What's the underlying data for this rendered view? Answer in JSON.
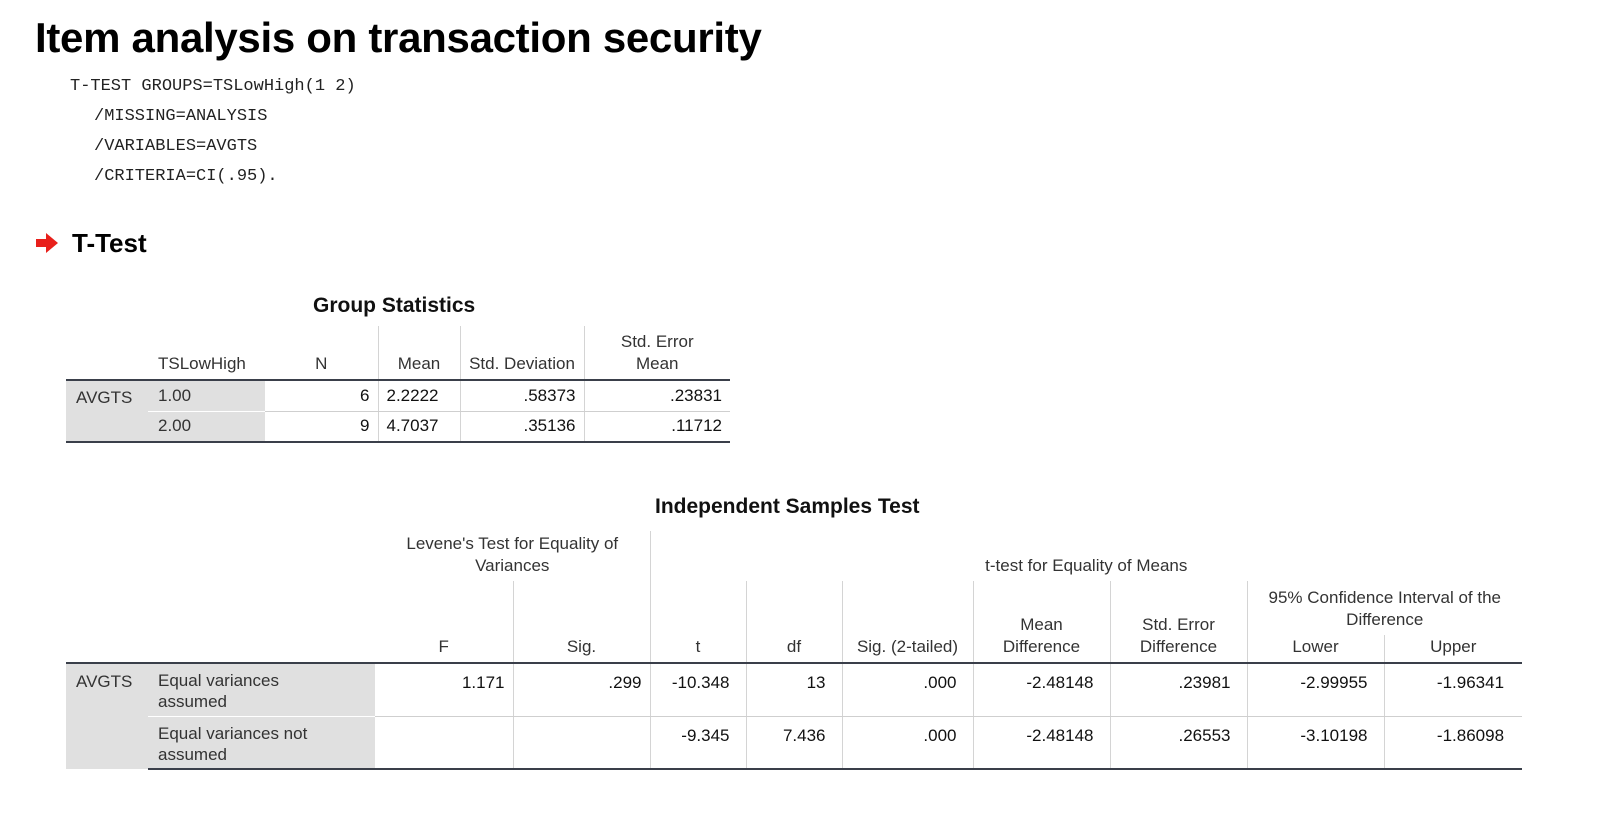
{
  "heading": "Item analysis on transaction security",
  "syntax": {
    "line1": "T-TEST GROUPS=TSLowHigh(1 2)",
    "line2": "/MISSING=ANALYSIS",
    "line3": "/VARIABLES=AVGTS",
    "line4": "/CRITERIA=CI(.95)."
  },
  "section": {
    "arrow_icon": "red-right-arrow-icon",
    "title": "T-Test",
    "accent_color": "#e8201b"
  },
  "group_stats": {
    "title": "Group Statistics",
    "headers": {
      "group": "TSLowHigh",
      "n": "N",
      "mean": "Mean",
      "sd": "Std. Deviation",
      "se_line1": "Std. Error",
      "se_line2": "Mean"
    },
    "variable": "AVGTS",
    "rows": [
      {
        "group": "1.00",
        "n": "6",
        "mean": "2.2222",
        "sd": ".58373",
        "se": ".23831"
      },
      {
        "group": "2.00",
        "n": "9",
        "mean": "4.7037",
        "sd": ".35136",
        "se": ".11712"
      }
    ]
  },
  "ind_test": {
    "title": "Independent Samples Test",
    "levene_line1": "Levene's Test for Equality of",
    "levene_line2": "Variances",
    "ttest_header": "t-test for Equality of Means",
    "ci_line1": "95% Confidence Interval of the",
    "ci_line2": "Difference",
    "headers": {
      "f": "F",
      "sig": "Sig.",
      "t": "t",
      "df": "df",
      "sig2": "Sig. (2-tailed)",
      "md_line1": "Mean",
      "md_line2": "Difference",
      "sed_line1": "Std. Error",
      "sed_line2": "Difference",
      "lower": "Lower",
      "upper": "Upper"
    },
    "variable": "AVGTS",
    "rows": [
      {
        "label_line1": "Equal variances",
        "label_line2": "assumed",
        "f": "1.171",
        "sig": ".299",
        "t": "-10.348",
        "df": "13",
        "sig2": ".000",
        "md": "-2.48148",
        "sed": ".23981",
        "lower": "-2.99955",
        "upper": "-1.96341"
      },
      {
        "label_line1": "Equal variances not",
        "label_line2": "assumed",
        "f": "",
        "sig": "",
        "t": "-9.345",
        "df": "7.436",
        "sig2": ".000",
        "md": "-2.48148",
        "sed": ".26553",
        "lower": "-3.10198",
        "upper": "-1.86098"
      }
    ]
  }
}
